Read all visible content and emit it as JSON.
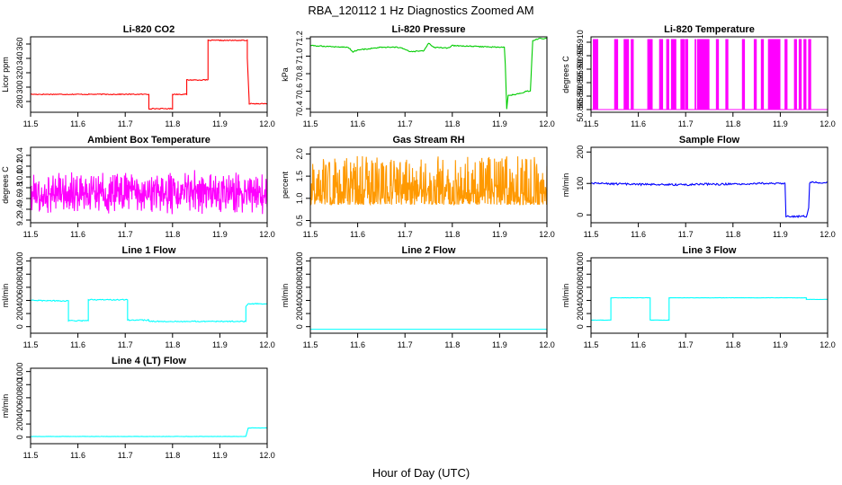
{
  "figure": {
    "title": "RBA_120112  1 Hz Diagnostics Zoomed AM",
    "xlabel": "Hour of Day (UTC)"
  },
  "chart_data": [
    {
      "type": "line",
      "title": "Li-820 CO2",
      "ylabel": "Licor ppm",
      "color": "#ff0000",
      "xlim": [
        11.5,
        12.0
      ],
      "xticks": [
        11.5,
        11.6,
        11.7,
        11.8,
        11.9,
        12.0
      ],
      "ylim": [
        265,
        370
      ],
      "yticks": [
        280,
        300,
        320,
        340,
        360
      ],
      "x": [
        11.5,
        11.75,
        11.75,
        11.8,
        11.8,
        11.83,
        11.83,
        11.875,
        11.875,
        11.958,
        11.958,
        11.962,
        11.962,
        12.0
      ],
      "y": [
        290,
        290,
        270,
        270,
        290,
        290,
        310,
        310,
        365,
        365,
        340,
        280,
        277,
        277
      ],
      "noise": 0.6
    },
    {
      "type": "line",
      "title": "Li-820 Pressure",
      "ylabel": "kPa",
      "color": "#00cc00",
      "xlim": [
        11.5,
        12.0
      ],
      "xticks": [
        11.5,
        11.6,
        11.7,
        11.8,
        11.9,
        12.0
      ],
      "ylim": [
        70.36,
        71.22
      ],
      "yticks": [
        70.4,
        70.6,
        70.8,
        71.0,
        71.2
      ],
      "x": [
        11.5,
        11.58,
        11.59,
        11.6,
        11.65,
        11.69,
        11.71,
        11.74,
        11.75,
        11.76,
        11.79,
        11.8,
        11.85,
        11.91,
        11.912,
        11.915,
        11.918,
        11.95,
        11.955,
        11.965,
        11.97,
        11.985,
        12.0
      ],
      "y": [
        71.12,
        71.1,
        71.05,
        71.07,
        71.1,
        71.1,
        71.05,
        71.06,
        71.15,
        71.1,
        71.09,
        71.12,
        71.11,
        71.1,
        70.9,
        70.4,
        70.55,
        70.58,
        70.6,
        70.6,
        71.18,
        71.2,
        71.2
      ],
      "noise": 0.006
    },
    {
      "type": "line",
      "title": "Li-820 Temperature",
      "ylabel": "degrees C",
      "color": "#ff00ff",
      "xlim": [
        11.5,
        12.0
      ],
      "xticks": [
        11.5,
        11.6,
        11.7,
        11.8,
        11.9,
        12.0
      ],
      "ylim": [
        50.884,
        50.912
      ],
      "yticks": [
        50.885,
        50.89,
        50.895,
        50.9,
        50.905,
        50.91
      ],
      "low": 50.885,
      "high": 50.911,
      "spike_x": [
        11.505,
        11.508,
        11.51,
        11.513,
        11.55,
        11.553,
        11.555,
        11.57,
        11.573,
        11.575,
        11.578,
        11.585,
        11.588,
        11.62,
        11.623,
        11.625,
        11.628,
        11.645,
        11.648,
        11.65,
        11.66,
        11.663,
        11.67,
        11.673,
        11.675,
        11.678,
        11.69,
        11.693,
        11.696,
        11.7,
        11.703,
        11.72,
        11.725,
        11.728,
        11.73,
        11.732,
        11.735,
        11.738,
        11.74,
        11.743,
        11.745,
        11.748,
        11.765,
        11.768,
        11.785,
        11.788,
        11.82,
        11.823,
        11.845,
        11.848,
        11.86,
        11.863,
        11.875,
        11.878,
        11.88,
        11.883,
        11.885,
        11.888,
        11.89,
        11.893,
        11.895,
        11.898,
        11.91,
        11.913,
        11.93,
        11.933,
        11.94,
        11.943,
        11.95,
        11.953,
        11.96,
        11.963
      ]
    },
    {
      "type": "line",
      "title": "Ambient Box Temperature",
      "ylabel": "degrees C",
      "color": "#ff00ff",
      "xlim": [
        11.5,
        12.0
      ],
      "xticks": [
        11.5,
        11.6,
        11.7,
        11.8,
        11.9,
        12.0
      ],
      "ylim": [
        9.15,
        10.55
      ],
      "yticks": [
        9.2,
        9.4,
        9.6,
        9.8,
        10.0,
        10.2,
        10.4
      ],
      "mean": 9.7,
      "spread": 0.45,
      "points": 600
    },
    {
      "type": "line",
      "title": "Gas Stream RH",
      "ylabel": "percent",
      "color": "#ff9900",
      "xlim": [
        11.5,
        12.0
      ],
      "xticks": [
        11.5,
        11.6,
        11.7,
        11.8,
        11.9,
        12.0
      ],
      "ylim": [
        0.45,
        2.15
      ],
      "yticks": [
        0.5,
        1.0,
        1.5,
        2.0
      ],
      "mean": 1.05,
      "spread": 0.55,
      "points": 600
    },
    {
      "type": "line",
      "title": "Sample Flow",
      "ylabel": "ml/min",
      "color": "#0000ff",
      "xlim": [
        11.5,
        12.0
      ],
      "xticks": [
        11.5,
        11.6,
        11.7,
        11.8,
        11.9,
        12.0
      ],
      "ylim": [
        -25,
        215
      ],
      "yticks": [
        0,
        100,
        200
      ],
      "x": [
        11.5,
        11.6,
        11.7,
        11.75,
        11.76,
        11.85,
        11.91,
        11.912,
        11.955,
        11.96,
        11.962,
        12.0
      ],
      "y": [
        100,
        97,
        96,
        98,
        97,
        100,
        100,
        -5,
        -5,
        20,
        103,
        103
      ],
      "noise": 3
    },
    {
      "type": "line",
      "title": "Line 1 Flow",
      "ylabel": "ml/min",
      "color": "#00ffff",
      "xlim": [
        11.5,
        12.0
      ],
      "xticks": [
        11.5,
        11.6,
        11.7,
        11.8,
        11.9,
        12.0
      ],
      "ylim": [
        -100,
        1050
      ],
      "yticks": [
        0,
        200,
        400,
        600,
        800,
        1000
      ],
      "x": [
        11.5,
        11.58,
        11.58,
        11.622,
        11.622,
        11.705,
        11.705,
        11.75,
        11.75,
        11.955,
        11.955,
        11.96,
        12.0
      ],
      "y": [
        400,
        390,
        90,
        90,
        410,
        410,
        100,
        100,
        80,
        80,
        300,
        350,
        350
      ],
      "noise": 8
    },
    {
      "type": "line",
      "title": "Line 2 Flow",
      "ylabel": "ml/min",
      "color": "#00ffff",
      "xlim": [
        11.5,
        12.0
      ],
      "xticks": [
        11.5,
        11.6,
        11.7,
        11.8,
        11.9,
        12.0
      ],
      "ylim": [
        -100,
        1050
      ],
      "yticks": [
        0,
        200,
        400,
        600,
        800,
        1000
      ],
      "x": [
        11.5,
        12.0
      ],
      "y": [
        -40,
        -40
      ],
      "noise": 0
    },
    {
      "type": "line",
      "title": "Line 3 Flow",
      "ylabel": "ml/min",
      "color": "#00ffff",
      "xlim": [
        11.5,
        12.0
      ],
      "xticks": [
        11.5,
        11.6,
        11.7,
        11.8,
        11.9,
        12.0
      ],
      "ylim": [
        -100,
        1050
      ],
      "yticks": [
        0,
        200,
        400,
        600,
        800,
        1000
      ],
      "x": [
        11.5,
        11.542,
        11.542,
        11.625,
        11.625,
        11.665,
        11.665,
        11.955,
        11.955,
        12.0
      ],
      "y": [
        100,
        100,
        440,
        440,
        100,
        100,
        440,
        440,
        415,
        415
      ],
      "noise": 2
    },
    {
      "type": "line",
      "title": "Line 4 (LT) Flow",
      "ylabel": "ml/min",
      "color": "#00ffff",
      "xlim": [
        11.5,
        12.0
      ],
      "xticks": [
        11.5,
        11.6,
        11.7,
        11.8,
        11.9,
        12.0
      ],
      "ylim": [
        -100,
        1050
      ],
      "yticks": [
        0,
        200,
        400,
        600,
        800,
        1000
      ],
      "x": [
        11.5,
        11.955,
        11.958,
        11.96,
        12.0
      ],
      "y": [
        10,
        10,
        90,
        140,
        140
      ],
      "noise": 2
    }
  ]
}
